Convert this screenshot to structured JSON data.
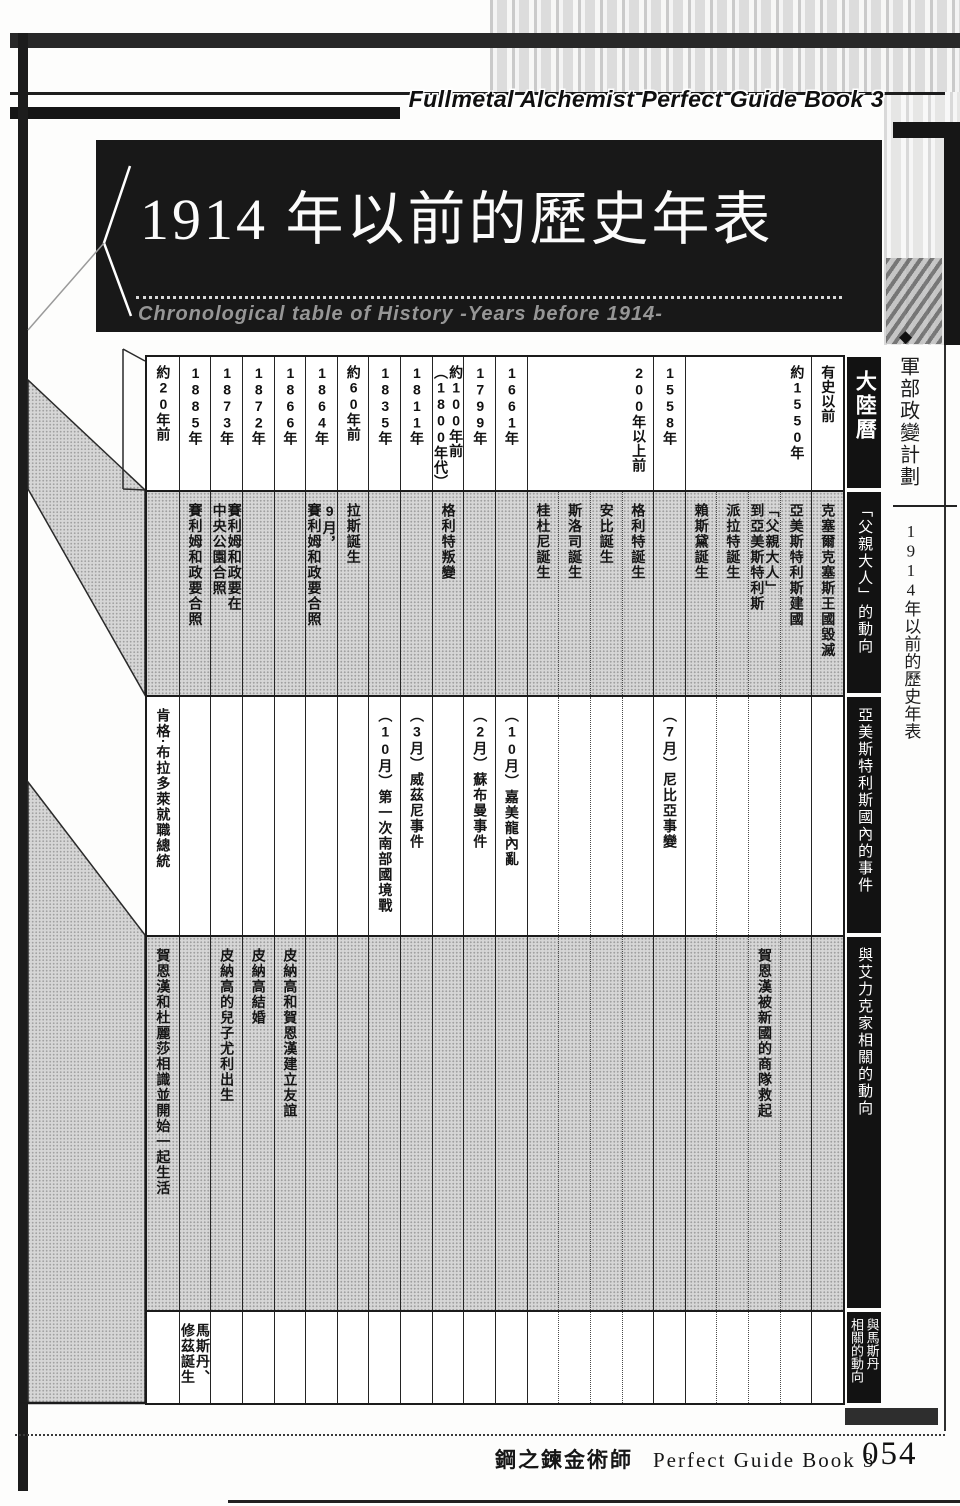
{
  "brand": "Fullmetal Alchemist Perfect Guide Book 3",
  "title_block": {
    "title": "1914 年以前的歷史年表",
    "subtitle": "Chronological table of History -Years before 1914-"
  },
  "margin_notes": {
    "diamond": "◆",
    "top": "軍部政變計劃",
    "bottom": "1914年以前的歷史年表"
  },
  "footer": {
    "series": "鋼之鍊金術師",
    "book": "Perfect Guide Book 3",
    "page_number": "054"
  },
  "timeline": {
    "corner_label": "大陸曆",
    "columns": [
      {
        "label": "約20年前",
        "span": 1
      },
      {
        "label": "1885年",
        "span": 1
      },
      {
        "label": "1873年",
        "span": 1
      },
      {
        "label": "1872年",
        "span": 1
      },
      {
        "label": "1866年",
        "span": 1
      },
      {
        "label": "1864年",
        "span": 1
      },
      {
        "label": "約60年前",
        "span": 1
      },
      {
        "label": "1835年",
        "span": 1
      },
      {
        "label": "1811年",
        "span": 1
      },
      {
        "label": "約100年前\n（1800年代）",
        "span": 1
      },
      {
        "label": "1799年",
        "span": 1
      },
      {
        "label": "1661年",
        "span": 1
      },
      {
        "label": "200年以上前",
        "span": 4
      },
      {
        "label": "1558年",
        "span": 1
      },
      {
        "label": "約1550年",
        "span": 4
      },
      {
        "label": "有史以前",
        "span": 1
      }
    ],
    "rows": [
      {
        "label": "「父親大人」的動向",
        "shaded": true,
        "cells": [
          {
            "col": 2,
            "text": "賽利姆和政要合照"
          },
          {
            "col": 3,
            "text": "賽利姆和政要在\n中央公園合照"
          },
          {
            "col": 6,
            "text": "9月，\n賽利姆和政要合照"
          },
          {
            "col": 7,
            "text": "拉斯誕生"
          },
          {
            "col": 10,
            "text": "格利特叛變"
          },
          {
            "col": 13,
            "text": "桂杜尼誕生"
          },
          {
            "col": 14,
            "text": "斯洛司誕生"
          },
          {
            "col": 15,
            "text": "安比誕生"
          },
          {
            "col": 16,
            "text": "格利特誕生"
          },
          {
            "col": 18,
            "text": "賴斯黛誕生"
          },
          {
            "col": 19,
            "text": "派拉特誕生"
          },
          {
            "col": 20,
            "text": "「父親大人」\n到亞美斯特利斯"
          },
          {
            "col": 21,
            "text": "亞美斯特利斯建國"
          },
          {
            "col": 22,
            "text": "克塞爾克塞斯王國毀滅"
          }
        ]
      },
      {
        "label": "亞美斯特利斯國內的事件",
        "shaded": false,
        "cells": [
          {
            "col": 1,
            "text": "肯格·布拉多萊就職總統"
          },
          {
            "col": 8,
            "text": "（10月）第一次南部國境戰"
          },
          {
            "col": 9,
            "text": "（3月）威茲尼事件"
          },
          {
            "col": 11,
            "text": "（2月）蘇布曼事件"
          },
          {
            "col": 12,
            "text": "（10月）嘉美龍內亂"
          },
          {
            "col": 17,
            "text": "（7月）尼比亞事變"
          }
        ]
      },
      {
        "label": "與艾力克家相關的動向",
        "shaded": true,
        "cells": [
          {
            "col": 1,
            "text": "賀恩漢和杜麗莎相識並開始一起生活"
          },
          {
            "col": 3,
            "text": "皮納高的兒子尤利出生"
          },
          {
            "col": 4,
            "text": "皮納高結婚"
          },
          {
            "col": 5,
            "text": "皮納高和賀恩漢建立友誼"
          },
          {
            "col": 20,
            "text": "賀恩漢被新國的商隊救起"
          }
        ]
      },
      {
        "label": "與馬斯丹\n相關的動向",
        "shaded": false,
        "cells": [
          {
            "col": 2,
            "text": "馬斯丹、\n修茲誕生"
          }
        ]
      }
    ]
  }
}
